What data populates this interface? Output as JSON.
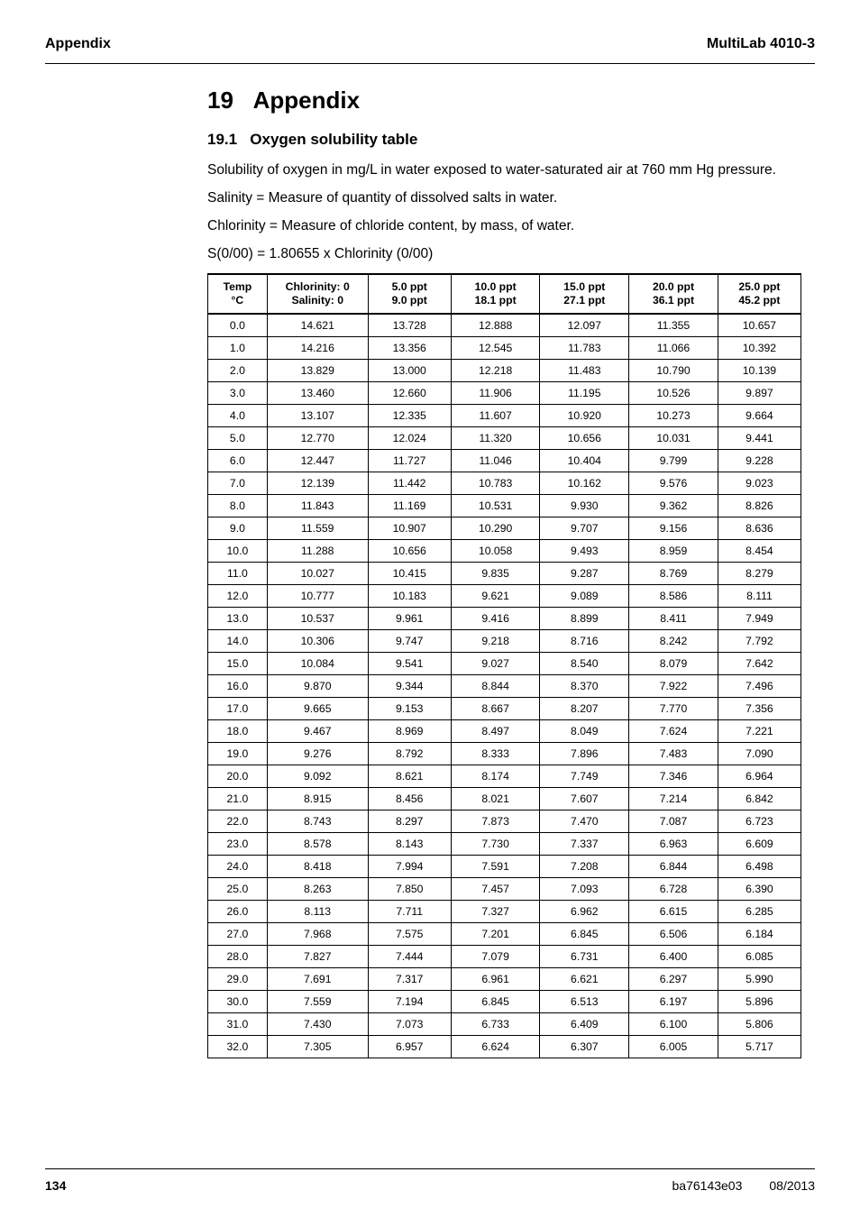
{
  "header": {
    "left": "Appendix",
    "right": "MultiLab 4010-3"
  },
  "chapter": {
    "number": "19",
    "title": "Appendix"
  },
  "section": {
    "number": "19.1",
    "title": "Oxygen solubility table"
  },
  "paragraphs": {
    "p1": "Solubility of oxygen in mg/L in water exposed to water-saturated air at 760 mm Hg pressure.",
    "p2": "Salinity = Measure of quantity of dissolved salts in water.",
    "p3": "Chlorinity = Measure of chloride content, by mass, of water.",
    "p4": "S(0/00) = 1.80655 x Chlorinity (0/00)"
  },
  "table": {
    "columns": [
      {
        "l1": "Temp",
        "l2": "°C"
      },
      {
        "l1": "Chlorinity: 0",
        "l2": "Salinity: 0"
      },
      {
        "l1": "5.0 ppt",
        "l2": "9.0 ppt"
      },
      {
        "l1": "10.0 ppt",
        "l2": "18.1 ppt"
      },
      {
        "l1": "15.0 ppt",
        "l2": "27.1 ppt"
      },
      {
        "l1": "20.0 ppt",
        "l2": "36.1 ppt"
      },
      {
        "l1": "25.0 ppt",
        "l2": "45.2 ppt"
      }
    ],
    "col_widths_pct": [
      10,
      17,
      14,
      15,
      15,
      15,
      14
    ],
    "rows": [
      [
        "0.0",
        "14.621",
        "13.728",
        "12.888",
        "12.097",
        "11.355",
        "10.657"
      ],
      [
        "1.0",
        "14.216",
        "13.356",
        "12.545",
        "11.783",
        "11.066",
        "10.392"
      ],
      [
        "2.0",
        "13.829",
        "13.000",
        "12.218",
        "11.483",
        "10.790",
        "10.139"
      ],
      [
        "3.0",
        "13.460",
        "12.660",
        "11.906",
        "11.195",
        "10.526",
        "9.897"
      ],
      [
        "4.0",
        "13.107",
        "12.335",
        "11.607",
        "10.920",
        "10.273",
        "9.664"
      ],
      [
        "5.0",
        "12.770",
        "12.024",
        "11.320",
        "10.656",
        "10.031",
        "9.441"
      ],
      [
        "6.0",
        "12.447",
        "11.727",
        "11.046",
        "10.404",
        "9.799",
        "9.228"
      ],
      [
        "7.0",
        "12.139",
        "11.442",
        "10.783",
        "10.162",
        "9.576",
        "9.023"
      ],
      [
        "8.0",
        "11.843",
        "11.169",
        "10.531",
        "9.930",
        "9.362",
        "8.826"
      ],
      [
        "9.0",
        "11.559",
        "10.907",
        "10.290",
        "9.707",
        "9.156",
        "8.636"
      ],
      [
        "10.0",
        "11.288",
        "10.656",
        "10.058",
        "9.493",
        "8.959",
        "8.454"
      ],
      [
        "11.0",
        "10.027",
        "10.415",
        "9.835",
        "9.287",
        "8.769",
        "8.279"
      ],
      [
        "12.0",
        "10.777",
        "10.183",
        "9.621",
        "9.089",
        "8.586",
        "8.111"
      ],
      [
        "13.0",
        "10.537",
        "9.961",
        "9.416",
        "8.899",
        "8.411",
        "7.949"
      ],
      [
        "14.0",
        "10.306",
        "9.747",
        "9.218",
        "8.716",
        "8.242",
        "7.792"
      ],
      [
        "15.0",
        "10.084",
        "9.541",
        "9.027",
        "8.540",
        "8.079",
        "7.642"
      ],
      [
        "16.0",
        "9.870",
        "9.344",
        "8.844",
        "8.370",
        "7.922",
        "7.496"
      ],
      [
        "17.0",
        "9.665",
        "9.153",
        "8.667",
        "8.207",
        "7.770",
        "7.356"
      ],
      [
        "18.0",
        "9.467",
        "8.969",
        "8.497",
        "8.049",
        "7.624",
        "7.221"
      ],
      [
        "19.0",
        "9.276",
        "8.792",
        "8.333",
        "7.896",
        "7.483",
        "7.090"
      ],
      [
        "20.0",
        "9.092",
        "8.621",
        "8.174",
        "7.749",
        "7.346",
        "6.964"
      ],
      [
        "21.0",
        "8.915",
        "8.456",
        "8.021",
        "7.607",
        "7.214",
        "6.842"
      ],
      [
        "22.0",
        "8.743",
        "8.297",
        "7.873",
        "7.470",
        "7.087",
        "6.723"
      ],
      [
        "23.0",
        "8.578",
        "8.143",
        "7.730",
        "7.337",
        "6.963",
        "6.609"
      ],
      [
        "24.0",
        "8.418",
        "7.994",
        "7.591",
        "7.208",
        "6.844",
        "6.498"
      ],
      [
        "25.0",
        "8.263",
        "7.850",
        "7.457",
        "7.093",
        "6.728",
        "6.390"
      ],
      [
        "26.0",
        "8.113",
        "7.711",
        "7.327",
        "6.962",
        "6.615",
        "6.285"
      ],
      [
        "27.0",
        "7.968",
        "7.575",
        "7.201",
        "6.845",
        "6.506",
        "6.184"
      ],
      [
        "28.0",
        "7.827",
        "7.444",
        "7.079",
        "6.731",
        "6.400",
        "6.085"
      ],
      [
        "29.0",
        "7.691",
        "7.317",
        "6.961",
        "6.621",
        "6.297",
        "5.990"
      ],
      [
        "30.0",
        "7.559",
        "7.194",
        "6.845",
        "6.513",
        "6.197",
        "5.896"
      ],
      [
        "31.0",
        "7.430",
        "7.073",
        "6.733",
        "6.409",
        "6.100",
        "5.806"
      ],
      [
        "32.0",
        "7.305",
        "6.957",
        "6.624",
        "6.307",
        "6.005",
        "5.717"
      ]
    ]
  },
  "footer": {
    "page_number": "134",
    "doc_code": "ba76143e03",
    "date": "08/2013"
  }
}
